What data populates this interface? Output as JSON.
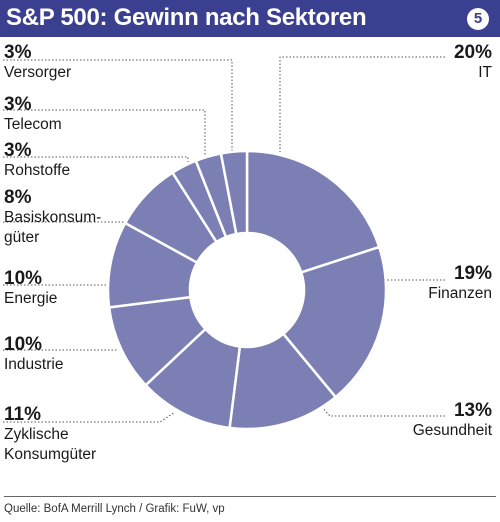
{
  "header": {
    "title": "S&P 500: Gewinn nach Sektoren",
    "badge": "5"
  },
  "colors": {
    "header_bg": "#3b3f8f",
    "slice_fill": "#7b7fb3",
    "slice_stroke": "#ffffff",
    "leader_line": "#555555"
  },
  "chart_data": {
    "type": "pie",
    "style": "donut",
    "title": "S&P 500: Gewinn nach Sektoren",
    "start": "top, clockwise",
    "slices": [
      {
        "label": "IT",
        "value": 20,
        "value_label": "20%"
      },
      {
        "label": "Finanzen",
        "value": 19,
        "value_label": "19%"
      },
      {
        "label": "Gesundheit",
        "value": 13,
        "value_label": "13%"
      },
      {
        "label": "Zyklische Konsumgüter",
        "value": 11,
        "value_label": "11%"
      },
      {
        "label": "Industrie",
        "value": 10,
        "value_label": "10%"
      },
      {
        "label": "Energie",
        "value": 10,
        "value_label": "10%"
      },
      {
        "label": "Basiskonsum-güter",
        "value": 8,
        "value_label": "8%"
      },
      {
        "label": "Rohstoffe",
        "value": 3,
        "value_label": "3%"
      },
      {
        "label": "Telecom",
        "value": 3,
        "value_label": "3%"
      },
      {
        "label": "Versorger",
        "value": 3,
        "value_label": "3%"
      }
    ]
  },
  "labels": {
    "it": {
      "value": "20%",
      "name": "IT"
    },
    "finanzen": {
      "value": "19%",
      "name": "Finanzen"
    },
    "gesundheit": {
      "value": "13%",
      "name": "Gesundheit"
    },
    "zyklische": {
      "value": "11%",
      "name_line1": "Zyklische",
      "name_line2": "Konsumgüter"
    },
    "industrie": {
      "value": "10%",
      "name": "Industrie"
    },
    "energie": {
      "value": "10%",
      "name": "Energie"
    },
    "basiskonsum": {
      "value": "8%",
      "name_line1": "Basiskonsum-",
      "name_line2": "güter"
    },
    "rohstoffe": {
      "value": "3%",
      "name": "Rohstoffe"
    },
    "telecom": {
      "value": "3%",
      "name": "Telecom"
    },
    "versorger": {
      "value": "3%",
      "name": "Versorger"
    }
  },
  "footer": {
    "source": "Quelle: BofA Merrill Lynch / Grafik: FuW, vp"
  }
}
